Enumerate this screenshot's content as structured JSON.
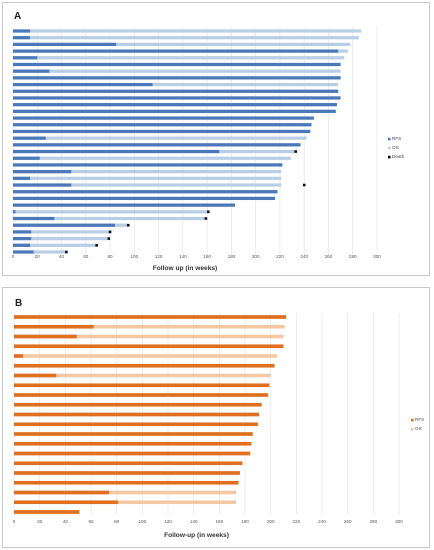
{
  "panels": [
    {
      "label": "A",
      "chart_data": {
        "type": "bar",
        "orientation": "horizontal",
        "xlabel": "Follow up (in weeks)",
        "xlim": [
          0,
          300
        ],
        "xticks": [
          0,
          20,
          40,
          60,
          80,
          100,
          120,
          140,
          160,
          180,
          200,
          220,
          240,
          260,
          280,
          300
        ],
        "grid": true,
        "legend_position": "right",
        "colors": {
          "RFS": "#4a78b8",
          "OS": "#b8cde6",
          "Death": "#111111"
        },
        "series": [
          {
            "name": "RFS",
            "values": [
              14,
              14,
              85,
              268,
              20,
              270,
              30,
              270,
              115,
              268,
              270,
              267,
              266,
              248,
              246,
              245,
              27,
              237,
              170,
              22,
              222,
              48,
              14,
              48,
              218,
              216,
              183,
              2,
              34,
              84,
              15,
              15,
              14,
              17
            ]
          },
          {
            "name": "OS",
            "values": [
              287,
              285,
              278,
              276,
              273,
              270,
              270,
              270,
              268,
              268,
              270,
              267,
              266,
              248,
              246,
              245,
              242,
              237,
              233,
              229,
              222,
              221,
              221,
              221,
              218,
              216,
              183,
              161,
              159,
              95,
              80,
              79,
              69,
              44
            ]
          },
          {
            "name": "Death",
            "values": [
              null,
              null,
              null,
              null,
              null,
              null,
              null,
              null,
              null,
              null,
              null,
              null,
              null,
              null,
              null,
              null,
              null,
              null,
              233,
              null,
              null,
              null,
              null,
              240,
              null,
              null,
              null,
              161,
              159,
              95,
              80,
              79,
              69,
              44
            ]
          }
        ]
      }
    },
    {
      "label": "B",
      "chart_data": {
        "type": "bar",
        "orientation": "horizontal",
        "xlabel": "Follow-up (in weeks)",
        "xlim": [
          0,
          300
        ],
        "xticks": [
          0,
          20,
          40,
          60,
          80,
          100,
          120,
          140,
          160,
          180,
          200,
          220,
          240,
          260,
          280,
          300
        ],
        "grid": true,
        "legend_position": "right",
        "colors": {
          "RFS": "#e07020",
          "OS": "#f4c8a4"
        },
        "series": [
          {
            "name": "RFS",
            "values": [
              212,
              62,
              49,
              210,
              7,
              203,
              33,
              199,
              198,
              193,
              191,
              190,
              186,
              185,
              184,
              178,
              176,
              175,
              74,
              81,
              51
            ]
          },
          {
            "name": "OS",
            "values": [
              212,
              211,
              210,
              210,
              205,
              203,
              200,
              199,
              198,
              193,
              191,
              190,
              186,
              185,
              184,
              178,
              176,
              175,
              173,
              173,
              51
            ]
          }
        ]
      }
    }
  ]
}
